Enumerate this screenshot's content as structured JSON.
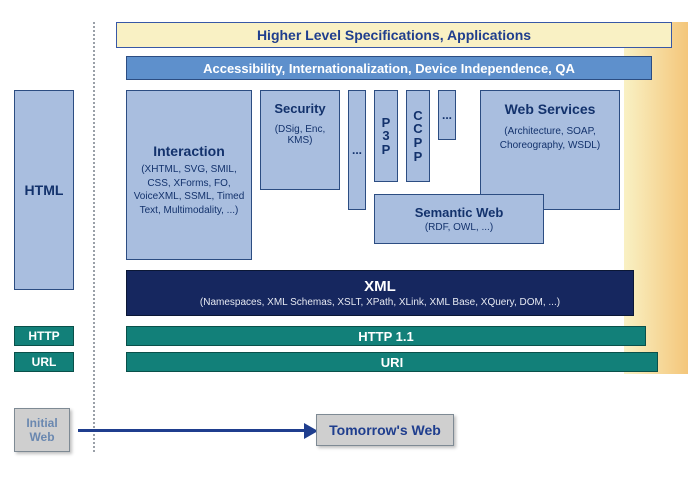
{
  "colors": {
    "blue_box_bg": "#a9bedf",
    "blue_box_border": "#2c4d82",
    "blue_box_text": "#13326c",
    "teal_bg": "#128079",
    "teal_border": "#0a504a",
    "navy_bg": "#16275f",
    "yellow_bg": "#f9f1c4",
    "header_blue": "#5e90cc",
    "gray_bg": "#cfcfcf",
    "arrow": "#1f3e8e",
    "title_blue": "#1f3e8e"
  },
  "left": {
    "html": "HTML",
    "http": "HTTP",
    "url": "URL"
  },
  "top": {
    "higher": "Higher Level Specifications, Applications",
    "accessibility": "Accessibility, Internationalization, Device Independence, QA"
  },
  "stack": {
    "interaction": {
      "title": "Interaction",
      "sub": "(XHTML, SVG, SMIL, CSS, XForms, FO, VoiceXML, SSML, Timed Text, Multimodality, ...)"
    },
    "security": {
      "title": "Security",
      "sub": "(DSig, Enc, KMS)"
    },
    "dots": "...",
    "p3p": "P3P",
    "ccpp": "CCPP",
    "webservices": {
      "title": "Web Services",
      "sub": "(Architecture, SOAP, Choreography, WSDL)"
    },
    "semantic": {
      "title": "Semantic Web",
      "sub": "(RDF, OWL, ...)"
    },
    "xml": {
      "title": "XML",
      "sub": "(Namespaces, XML Schemas, XSLT, XPath, XLink, XML Base, XQuery, DOM, ...)"
    },
    "http11": "HTTP 1.1",
    "uri": "URI"
  },
  "bottom": {
    "initial": "Initial Web",
    "tomorrow": "Tomorrow's Web"
  }
}
